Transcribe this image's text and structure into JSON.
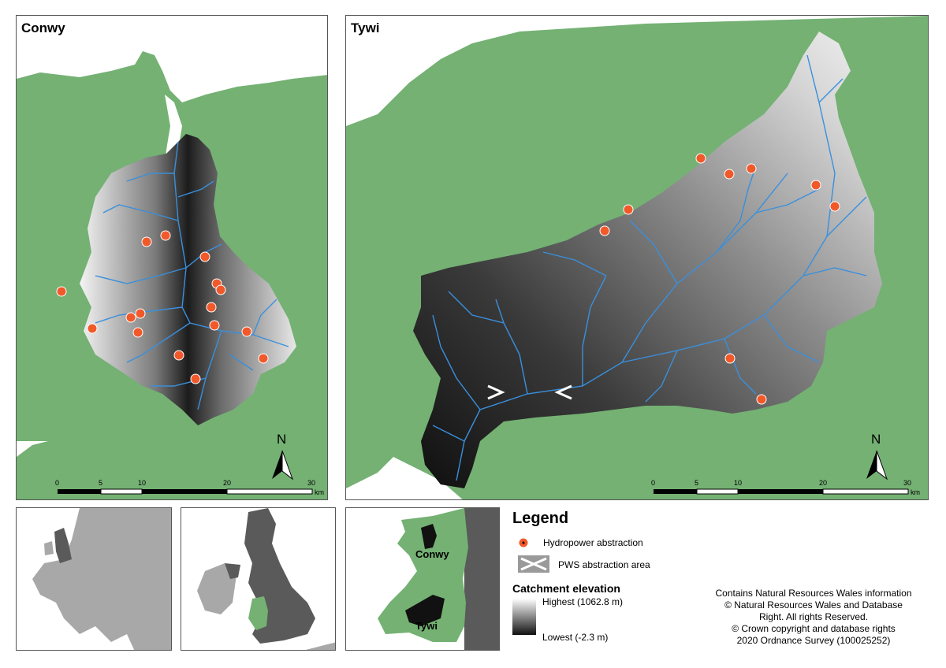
{
  "maps": {
    "conwy": {
      "title": "Conwy",
      "north_label": "N",
      "scale_ticks": [
        "0",
        "5",
        "10",
        "20",
        "30"
      ],
      "scale_unit": "km"
    },
    "tywi": {
      "title": "Tywi",
      "north_label": "N",
      "scale_ticks": [
        "0",
        "5",
        "10",
        "20",
        "30"
      ],
      "scale_unit": "km"
    }
  },
  "inset": {
    "conwy_label": "Conwy",
    "tywi_label": "Tywi"
  },
  "legend": {
    "title": "Legend",
    "hydropower_label": "Hydropower abstraction",
    "pws_label": "PWS abstraction area",
    "elevation_title": "Catchment elevation",
    "highest_label": "Highest (1062.8 m)",
    "lowest_label": "Lowest (-2.3 m)"
  },
  "credits": [
    "Contains Natural Resources Wales information",
    "© Natural Resources Wales and Database",
    "Right. All rights Reserved.",
    "© Crown copyright and database rights",
    "2020 Ordnance Survey (100025252)"
  ],
  "colors": {
    "land": "#74b173",
    "sea": "#ffffff",
    "river": "#3a8fdc",
    "hydropower_fill": "#f1592a",
    "elevation_high": "#ffffff",
    "elevation_low": "#111111",
    "europe_land": "#a8a8a8",
    "uk_highlight": "#5a5a5a"
  }
}
